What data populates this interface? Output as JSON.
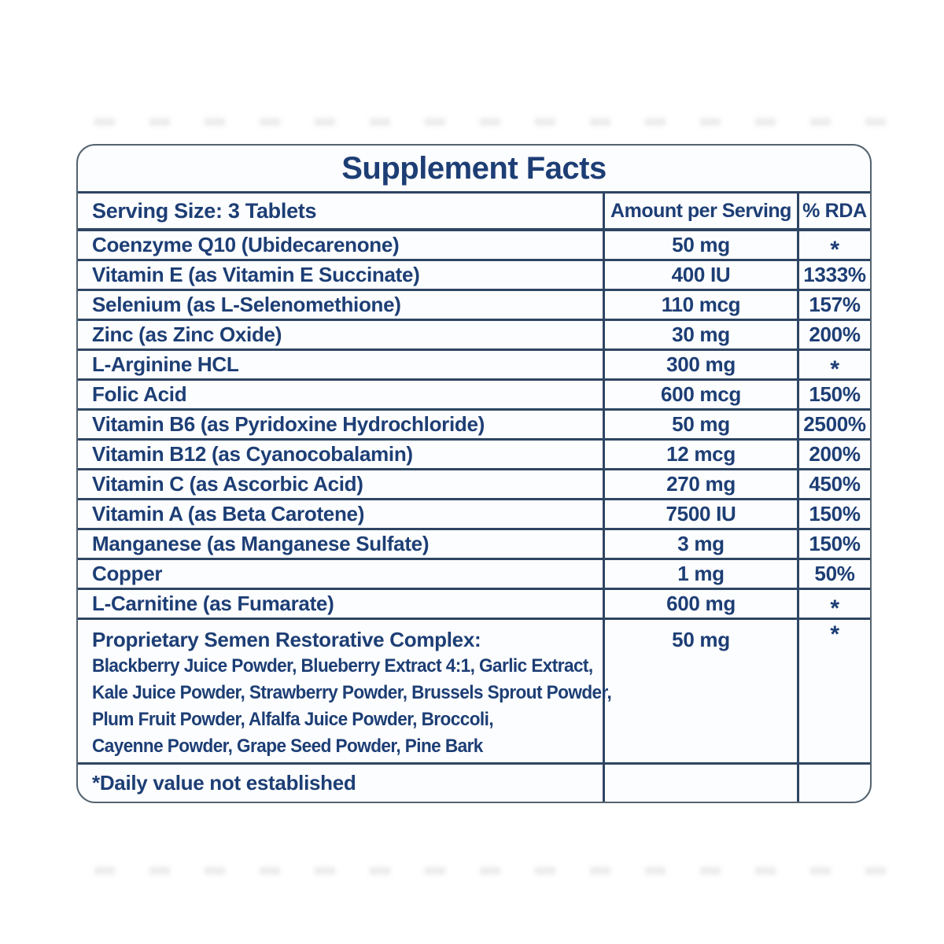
{
  "label": {
    "title": "Supplement Facts",
    "serving_size": "Serving Size: 3 Tablets",
    "columns": {
      "amount": "Amount per Serving",
      "rda": "% RDA"
    },
    "rows": [
      {
        "name": "Coenzyme Q10 (Ubidecarenone)",
        "amount": "50 mg",
        "rda": "*"
      },
      {
        "name": "Vitamin E (as Vitamin E Succinate)",
        "amount": "400 IU",
        "rda": "1333%"
      },
      {
        "name": "Selenium (as L-Selenomethione)",
        "amount": "110 mcg",
        "rda": "157%"
      },
      {
        "name": "Zinc (as Zinc Oxide)",
        "amount": "30 mg",
        "rda": "200%"
      },
      {
        "name": "L-Arginine HCL",
        "amount": "300 mg",
        "rda": "*"
      },
      {
        "name": "Folic Acid",
        "amount": "600 mcg",
        "rda": "150%"
      },
      {
        "name": "Vitamin B6 (as Pyridoxine Hydrochloride)",
        "amount": "50 mg",
        "rda": "2500%"
      },
      {
        "name": "Vitamin B12 (as Cyanocobalamin)",
        "amount": "12 mcg",
        "rda": "200%"
      },
      {
        "name": "Vitamin C (as Ascorbic Acid)",
        "amount": "270 mg",
        "rda": "450%"
      },
      {
        "name": "Vitamin A (as Beta Carotene)",
        "amount": "7500 IU",
        "rda": "150%"
      },
      {
        "name": "Manganese (as Manganese Sulfate)",
        "amount": "3 mg",
        "rda": "150%"
      },
      {
        "name": "Copper",
        "amount": "1 mg",
        "rda": "50%"
      },
      {
        "name": "L-Carnitine (as Fumarate)",
        "amount": "600 mg",
        "rda": "*"
      }
    ],
    "proprietary": {
      "name": "Proprietary Semen Restorative Complex:",
      "amount": "50 mg",
      "rda": "*",
      "ingredients_lines": [
        "Blackberry Juice Powder, Blueberry Extract 4:1, Garlic Extract,",
        "Kale Juice Powder, Strawberry Powder, Brussels Sprout Powder,",
        "Plum Fruit Powder, Alfalfa Juice Powder, Broccoli,",
        "Cayenne Powder, Grape Seed Powder, Pine Bark"
      ]
    },
    "footnote": "*Daily value not established",
    "colors": {
      "text": "#1d3e75",
      "border": "#2e4563",
      "outer_border": "#55636f",
      "bg": "#ffffff",
      "panel_bg": "#fcfdfe"
    }
  }
}
